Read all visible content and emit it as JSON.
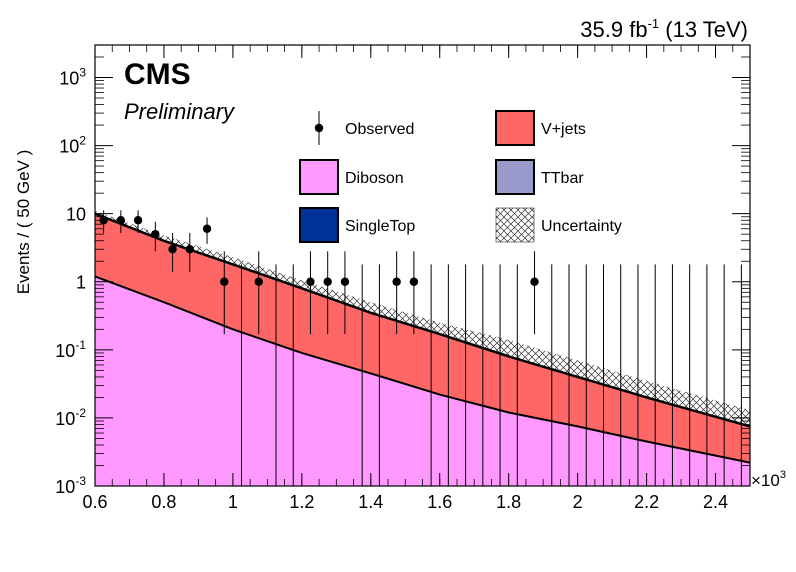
{
  "chart_data": {
    "type": "area",
    "title": "",
    "lumi_label": "35.9 fb",
    "lumi_sup": "-1",
    "lumi_energy": " (13 TeV)",
    "experiment": "CMS",
    "status": "Preliminary",
    "xlabel": "",
    "x_multiplier_base": "×10",
    "x_multiplier_exp": "3",
    "ylabel": "Events / ( 50 GeV )",
    "ylog": true,
    "xlim": [
      0.6,
      2.5
    ],
    "ylim": [
      0.001,
      3000
    ],
    "x_ticks": [
      0.6,
      0.8,
      1.0,
      1.2,
      1.4,
      1.6,
      1.8,
      2.0,
      2.2,
      2.4
    ],
    "x_tick_labels": [
      "0.6",
      "0.8",
      "1",
      "1.2",
      "1.4",
      "1.6",
      "1.8",
      "2",
      "2.2",
      "2.4"
    ],
    "y_ticks": [
      {
        "value": 0.001,
        "base": "10",
        "exp": "-3"
      },
      {
        "value": 0.01,
        "base": "10",
        "exp": "-2"
      },
      {
        "value": 0.1,
        "base": "10",
        "exp": "-1"
      },
      {
        "value": 1,
        "base": "1",
        "exp": ""
      },
      {
        "value": 10,
        "base": "10",
        "exp": ""
      },
      {
        "value": 100,
        "base": "10",
        "exp": "2"
      },
      {
        "value": 1000,
        "base": "10",
        "exp": "3"
      }
    ],
    "legend": [
      {
        "name": "Observed",
        "kind": "marker"
      },
      {
        "name": "V+jets",
        "kind": "fill",
        "color": "#ff6666"
      },
      {
        "name": "Diboson",
        "kind": "fill",
        "color": "#ff99ff"
      },
      {
        "name": "TTbar",
        "kind": "fill",
        "color": "#9999cc"
      },
      {
        "name": "SingleTop",
        "kind": "fill",
        "color": "#003399"
      },
      {
        "name": "Uncertainty",
        "kind": "hatch",
        "color": "#000000"
      }
    ],
    "background_curves": {
      "x": [
        0.6,
        0.8,
        1.0,
        1.2,
        1.4,
        1.6,
        1.8,
        2.0,
        2.2,
        2.5
      ],
      "diboson_total": [
        1.2,
        0.5,
        0.2,
        0.09,
        0.045,
        0.022,
        0.012,
        0.0075,
        0.0045,
        0.0022
      ],
      "stack_total": [
        10,
        4.0,
        1.8,
        0.8,
        0.35,
        0.17,
        0.08,
        0.04,
        0.02,
        0.0075
      ],
      "uncertainty_up": [
        11,
        4.8,
        2.3,
        1.05,
        0.5,
        0.25,
        0.14,
        0.07,
        0.035,
        0.013
      ],
      "uncertainty_down": [
        9,
        3.4,
        1.5,
        0.65,
        0.28,
        0.13,
        0.06,
        0.03,
        0.016,
        0.006
      ]
    },
    "observed": [
      {
        "x": 0.625,
        "y": 8,
        "yerr_up": 3.2,
        "yerr_down": 2.8
      },
      {
        "x": 0.675,
        "y": 8,
        "yerr_up": 3.2,
        "yerr_down": 2.8
      },
      {
        "x": 0.725,
        "y": 8,
        "yerr_up": 3.2,
        "yerr_down": 2.8
      },
      {
        "x": 0.775,
        "y": 5,
        "yerr_up": 2.6,
        "yerr_down": 2.2
      },
      {
        "x": 0.825,
        "y": 3,
        "yerr_up": 2.2,
        "yerr_down": 1.6
      },
      {
        "x": 0.875,
        "y": 3,
        "yerr_up": 2.2,
        "yerr_down": 1.6
      },
      {
        "x": 0.925,
        "y": 6,
        "yerr_up": 2.8,
        "yerr_down": 2.4
      },
      {
        "x": 0.975,
        "y": 1,
        "yerr_up": 1.8,
        "yerr_down": 0.83
      },
      {
        "x": 1.075,
        "y": 1,
        "yerr_up": 1.8,
        "yerr_down": 0.83
      },
      {
        "x": 1.225,
        "y": 1,
        "yerr_up": 1.8,
        "yerr_down": 0.83
      },
      {
        "x": 1.275,
        "y": 1,
        "yerr_up": 1.8,
        "yerr_down": 0.83
      },
      {
        "x": 1.325,
        "y": 1,
        "yerr_up": 1.8,
        "yerr_down": 0.83
      },
      {
        "x": 1.475,
        "y": 1,
        "yerr_up": 1.8,
        "yerr_down": 0.83
      },
      {
        "x": 1.525,
        "y": 1,
        "yerr_up": 1.8,
        "yerr_down": 0.83
      },
      {
        "x": 1.875,
        "y": 1,
        "yerr_up": 1.8,
        "yerr_down": 0.83
      }
    ],
    "empty_bin_x": [
      1.025,
      1.125,
      1.175,
      1.375,
      1.425,
      1.575,
      1.625,
      1.675,
      1.725,
      1.775,
      1.825,
      1.925,
      1.975,
      2.025,
      2.075,
      2.125,
      2.175,
      2.225,
      2.275,
      2.325,
      2.375,
      2.425,
      2.475
    ],
    "empty_bin_err_up": 1.8
  }
}
